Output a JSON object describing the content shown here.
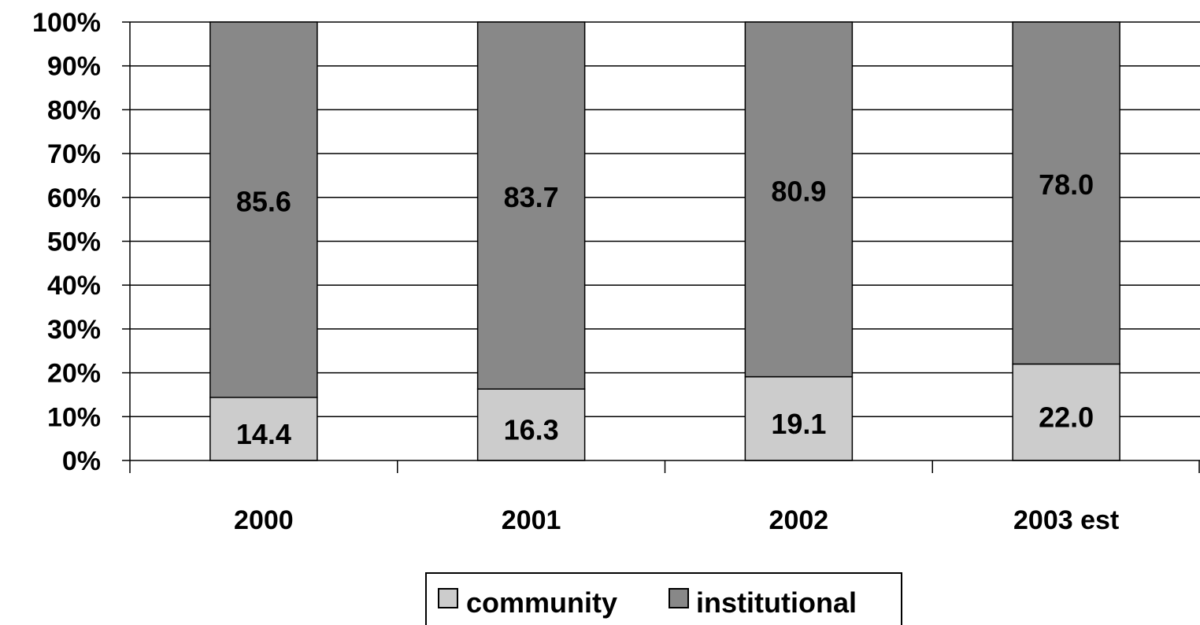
{
  "chart_data": {
    "type": "bar",
    "stacked": true,
    "categories": [
      "2000",
      "2001",
      "2002",
      "2003 est"
    ],
    "series": [
      {
        "name": "community",
        "values": [
          14.4,
          16.3,
          19.1,
          22.0
        ],
        "color": "#cccccc"
      },
      {
        "name": "institutional",
        "values": [
          85.6,
          83.7,
          80.9,
          78.0
        ],
        "color": "#888888"
      }
    ],
    "y_ticks": [
      "0%",
      "10%",
      "20%",
      "30%",
      "40%",
      "50%",
      "60%",
      "70%",
      "80%",
      "90%",
      "100%"
    ],
    "ylim": [
      0,
      100
    ],
    "grid": true,
    "legend_position": "bottom"
  }
}
